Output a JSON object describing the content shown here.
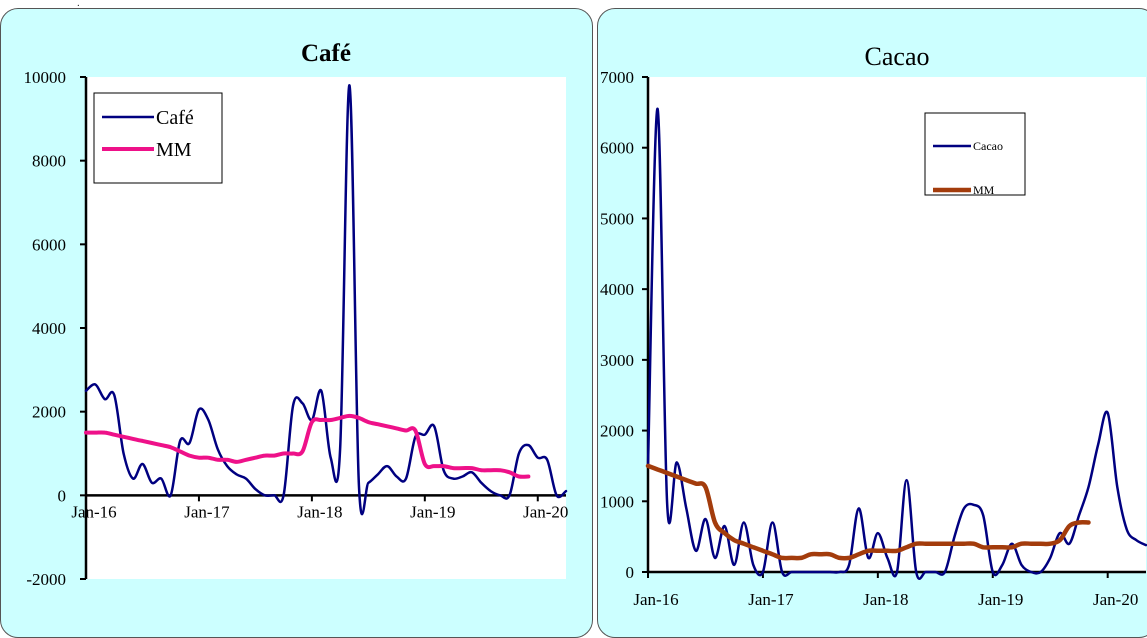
{
  "chart_data": [
    {
      "type": "line",
      "title": "Café",
      "xlabel": "",
      "ylabel": "",
      "ylim": [
        -2000,
        10000
      ],
      "ytick_labels": [
        "-2000",
        "0",
        "2000",
        "4000",
        "6000",
        "8000",
        "10000"
      ],
      "yticks": [
        -2000,
        0,
        2000,
        4000,
        6000,
        8000,
        10000
      ],
      "xtick_labels": [
        "Jan-16",
        "Jan-17",
        "Jan-18",
        "Jan-19",
        "Jan-20"
      ],
      "xticks": [
        0,
        12,
        24,
        36,
        48
      ],
      "xlim": [
        0,
        51
      ],
      "x_axis_at": 0,
      "grid": false,
      "legend_position": "top-left",
      "colors": {
        "series_0": "#000080",
        "series_1": "#ee1189",
        "frame": "#000000"
      },
      "series": [
        {
          "name": "Café",
          "x": [
            0,
            1,
            2,
            3,
            4,
            5,
            6,
            7,
            8,
            9,
            10,
            11,
            12,
            13,
            14,
            15,
            16,
            17,
            18,
            19,
            20,
            21,
            22,
            23,
            24,
            25,
            26,
            27,
            28,
            29,
            30,
            31,
            32,
            33,
            34,
            35,
            36,
            37,
            38,
            39,
            40,
            41,
            42,
            43,
            44,
            45,
            46,
            47,
            48,
            49,
            50,
            51
          ],
          "values": [
            2500,
            2650,
            2300,
            2400,
            1000,
            400,
            750,
            300,
            400,
            0,
            1300,
            1250,
            2050,
            1800,
            1100,
            700,
            500,
            400,
            150,
            0,
            0,
            0,
            2150,
            2200,
            1800,
            2500,
            900,
            1100,
            9800,
            250,
            300,
            500,
            700,
            450,
            400,
            1400,
            1450,
            1650,
            600,
            400,
            450,
            550,
            300,
            100,
            0,
            0,
            1000,
            1200,
            900,
            850,
            0,
            100
          ]
        },
        {
          "name": "MM",
          "x": [
            0,
            1,
            2,
            3,
            4,
            5,
            6,
            7,
            8,
            9,
            10,
            11,
            12,
            13,
            14,
            15,
            16,
            17,
            18,
            19,
            20,
            21,
            22,
            23,
            24,
            25,
            26,
            27,
            28,
            29,
            30,
            31,
            32,
            33,
            34,
            35,
            36,
            37,
            38,
            39,
            40,
            41,
            42,
            43,
            44,
            45,
            46,
            47
          ],
          "values": [
            1500,
            1500,
            1500,
            1450,
            1400,
            1350,
            1300,
            1250,
            1200,
            1150,
            1050,
            950,
            900,
            900,
            850,
            850,
            800,
            850,
            900,
            950,
            950,
            1000,
            1000,
            1050,
            1750,
            1800,
            1800,
            1850,
            1900,
            1850,
            1750,
            1700,
            1650,
            1600,
            1550,
            1550,
            750,
            700,
            700,
            650,
            650,
            650,
            600,
            600,
            600,
            550,
            450,
            450
          ]
        }
      ]
    },
    {
      "type": "line",
      "title": "Cacao",
      "xlabel": "",
      "ylabel": "",
      "ylim": [
        0,
        7000
      ],
      "ytick_labels": [
        "0",
        "1000",
        "2000",
        "3000",
        "4000",
        "5000",
        "6000",
        "7000"
      ],
      "yticks": [
        0,
        1000,
        2000,
        3000,
        4000,
        5000,
        6000,
        7000
      ],
      "xtick_labels": [
        "Jan-16",
        "Jan-17",
        "Jan-18",
        "Jan-19",
        "Jan-20"
      ],
      "xticks": [
        0,
        12,
        24,
        36,
        48
      ],
      "xlim": [
        0,
        52
      ],
      "x_axis_at": 0,
      "grid": false,
      "legend_position": "top-right",
      "colors": {
        "series_0": "#000080",
        "series_1": "#a33c0c",
        "frame": "#000000"
      },
      "series": [
        {
          "name": "Cacao",
          "x": [
            0,
            1,
            2,
            3,
            4,
            5,
            6,
            7,
            8,
            9,
            10,
            11,
            12,
            13,
            14,
            15,
            16,
            17,
            18,
            19,
            20,
            21,
            22,
            23,
            24,
            25,
            26,
            27,
            28,
            29,
            30,
            31,
            32,
            33,
            34,
            35,
            36,
            37,
            38,
            39,
            40,
            41,
            42,
            43,
            44,
            45,
            46,
            47,
            48,
            49,
            50,
            51,
            52
          ],
          "values": [
            1500,
            6550,
            950,
            1550,
            900,
            300,
            750,
            200,
            650,
            100,
            700,
            100,
            0,
            700,
            0,
            0,
            0,
            0,
            0,
            0,
            0,
            100,
            900,
            200,
            550,
            200,
            0,
            1300,
            0,
            0,
            0,
            0,
            500,
            900,
            950,
            800,
            0,
            100,
            400,
            100,
            0,
            0,
            200,
            550,
            400,
            800,
            1200,
            1800,
            2250,
            1200,
            600,
            450,
            380
          ]
        },
        {
          "name": "MM",
          "x": [
            0,
            1,
            2,
            3,
            4,
            5,
            6,
            7,
            8,
            9,
            10,
            11,
            12,
            13,
            14,
            15,
            16,
            17,
            18,
            19,
            20,
            21,
            22,
            23,
            24,
            25,
            26,
            27,
            28,
            29,
            30,
            31,
            32,
            33,
            34,
            35,
            36,
            37,
            38,
            39,
            40,
            41,
            42,
            43,
            44,
            45,
            46
          ],
          "values": [
            1500,
            1450,
            1400,
            1350,
            1300,
            1250,
            1200,
            700,
            550,
            450,
            400,
            350,
            300,
            250,
            200,
            200,
            200,
            250,
            250,
            250,
            200,
            200,
            250,
            300,
            300,
            300,
            300,
            350,
            400,
            400,
            400,
            400,
            400,
            400,
            400,
            350,
            350,
            350,
            350,
            400,
            400,
            400,
            400,
            450,
            650,
            700,
            700
          ]
        }
      ]
    }
  ]
}
